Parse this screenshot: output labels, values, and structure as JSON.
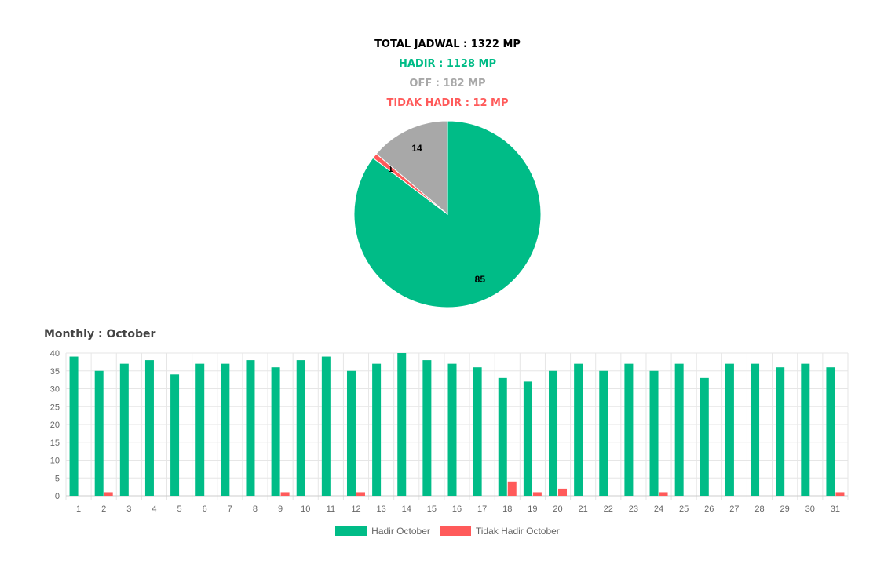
{
  "summary": {
    "total": "TOTAL JADWAL : 1322 MP",
    "hadir": "HADIR : 1128 MP",
    "off": "OFF : 182 MP",
    "tidak_hadir": "TIDAK HADIR : 12 MP"
  },
  "colors": {
    "hadir": "#00bc87",
    "off": "#a8a8a8",
    "tidak_hadir": "#ff5a5a",
    "total": "#000000"
  },
  "monthly_title": "Monthly : October",
  "chart_data": [
    {
      "type": "pie",
      "slices": [
        {
          "label": "85",
          "value": 85.3,
          "color": "#00bc87"
        },
        {
          "label": "1",
          "value": 0.9,
          "color": "#ff5a5a"
        },
        {
          "label": "14",
          "value": 13.8,
          "color": "#a8a8a8"
        }
      ]
    },
    {
      "type": "bar",
      "categories": [
        "1",
        "2",
        "3",
        "4",
        "5",
        "6",
        "7",
        "8",
        "9",
        "10",
        "11",
        "12",
        "13",
        "14",
        "15",
        "16",
        "17",
        "18",
        "19",
        "20",
        "21",
        "22",
        "23",
        "24",
        "25",
        "26",
        "27",
        "28",
        "29",
        "30",
        "31"
      ],
      "series": [
        {
          "name": "Hadir October",
          "color": "#00bc87",
          "values": [
            39,
            35,
            37,
            38,
            34,
            37,
            37,
            38,
            36,
            38,
            39,
            35,
            37,
            40,
            38,
            37,
            36,
            33,
            32,
            35,
            37,
            35,
            37,
            35,
            37,
            33,
            37,
            37,
            36,
            37,
            36
          ]
        },
        {
          "name": "Tidak Hadir October",
          "color": "#ff5a5a",
          "values": [
            0,
            1,
            0,
            0,
            0,
            0,
            0,
            0,
            1,
            0,
            0,
            1,
            0,
            0,
            0,
            0,
            0,
            4,
            1,
            2,
            0,
            0,
            0,
            1,
            0,
            0,
            0,
            0,
            0,
            0,
            1
          ]
        }
      ],
      "ylim": [
        0,
        40
      ],
      "yticks": [
        "0",
        "5",
        "10",
        "15",
        "20",
        "25",
        "30",
        "35",
        "40"
      ],
      "grid": true,
      "legend": "bottom"
    }
  ]
}
